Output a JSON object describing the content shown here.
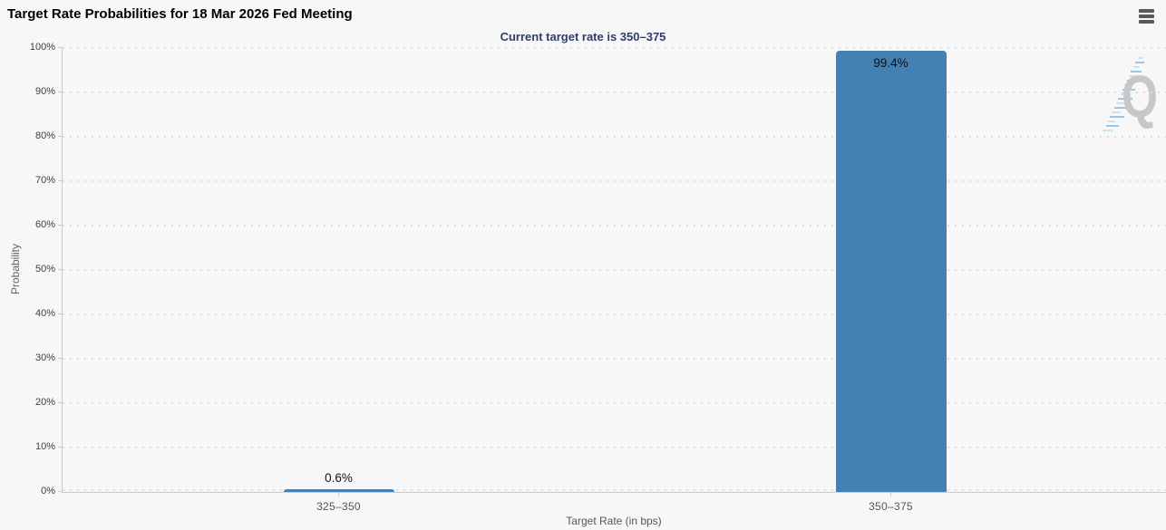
{
  "toolbar": {
    "menu_icon": "hamburger-icon"
  },
  "watermark": {
    "letter": "Q"
  },
  "chart_data": {
    "type": "bar",
    "title": "Target Rate Probabilities for 18 Mar 2026 Fed Meeting",
    "subtitle": "Current target rate is 350–375",
    "xlabel": "Target Rate (in bps)",
    "ylabel": "Probability",
    "categories": [
      "325–350",
      "350–375"
    ],
    "values": [
      0.6,
      99.4
    ],
    "value_labels": [
      "0.6%",
      "99.4%"
    ],
    "ylim": [
      0,
      100
    ],
    "ytick_step": 10,
    "ytick_suffix": "%",
    "grid": "horizontal-dotted",
    "legend": "none",
    "bar_color": "#4480b2",
    "value_label_inside_threshold": 95
  },
  "colors": {
    "background": "#f7f7f7",
    "title_text": "#000000",
    "subtitle_text": "#2e3d69",
    "axis_line": "#cccccc",
    "grid_dot": "#dddddd",
    "y_tick_text": "#404040",
    "x_tick_text": "#555555",
    "axis_title_text": "#555555",
    "bar": "#4480b2",
    "value_label_text": "#111111",
    "menu_icon": "#58595b",
    "watermark_letter": "#c7c7c7",
    "watermark_stripe_light": "#c9e1f1",
    "watermark_stripe_dark": "#9cc6e2"
  }
}
